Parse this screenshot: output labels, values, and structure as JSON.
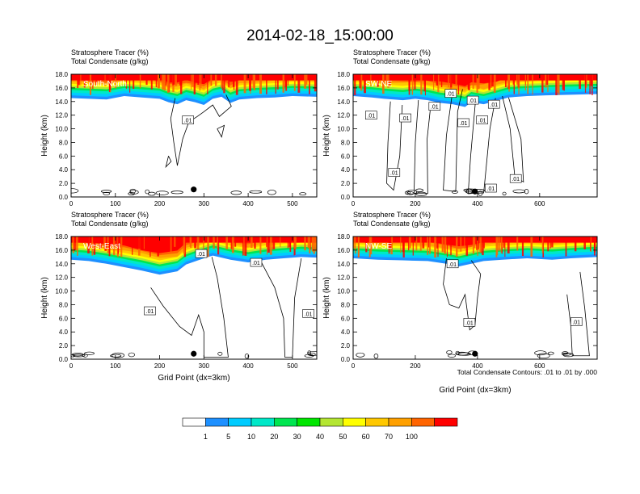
{
  "title": "2014-02-18_15:00:00",
  "chart_data": {
    "type": "heatmap",
    "title": "2014-02-18_15:00:00",
    "colorbar": {
      "colors": [
        "#ffffff",
        "#1e90ff",
        "#00ccff",
        "#00e8c8",
        "#00e650",
        "#00e600",
        "#b4e632",
        "#ffff00",
        "#ffc800",
        "#ffa000",
        "#ff6400",
        "#ff0000"
      ],
      "labels": [
        "1",
        "5",
        "10",
        "20",
        "30",
        "40",
        "50",
        "60",
        "70",
        "100"
      ]
    },
    "panels": [
      {
        "label": "South-North",
        "field_title_1": "Stratosphere Tracer   (%)",
        "field_title_2": "Total Condensate   (g/kg)",
        "ylabel": "Height (km)",
        "xlabel": "",
        "xlim": [
          0,
          555
        ],
        "ylim": [
          0,
          18
        ],
        "xticks": [
          "0",
          "100",
          "200",
          "300",
          "400",
          "500"
        ],
        "xtick_values": [
          0,
          100,
          200,
          300,
          400,
          500
        ],
        "yticks": [
          "0.0",
          "2.0",
          "4.0",
          "6.0",
          "8.0",
          "10.0",
          "12.0",
          "14.0",
          "16.0",
          "18.0"
        ],
        "marker_x": 277,
        "marker_y": 1.1,
        "contour_labels": [
          {
            "x": 264,
            "y": 11.3,
            "text": ".01"
          }
        ],
        "cloud_top_profile": [
          [
            0,
            14.5
          ],
          [
            40,
            14.4
          ],
          [
            80,
            14.3
          ],
          [
            120,
            14.8
          ],
          [
            160,
            14.6
          ],
          [
            200,
            14.4
          ],
          [
            220,
            13.9
          ],
          [
            240,
            13.6
          ],
          [
            260,
            14.2
          ],
          [
            280,
            13.9
          ],
          [
            300,
            13.5
          ],
          [
            320,
            14.4
          ],
          [
            340,
            14.7
          ],
          [
            360,
            13.8
          ],
          [
            380,
            14.3
          ],
          [
            420,
            14.5
          ],
          [
            460,
            14.6
          ],
          [
            500,
            14.8
          ],
          [
            555,
            14.7
          ]
        ],
        "condensate_contours": [
          [
            [
              235,
              14.5
            ],
            [
              225,
              11.5
            ],
            [
              232,
              8.0
            ],
            [
              240,
              4.6
            ],
            [
              252,
              8.5
            ],
            [
              266,
              11.0
            ],
            [
              285,
              11.8
            ],
            [
              300,
              12.5
            ],
            [
              320,
              13.5
            ],
            [
              335,
              11.8
            ],
            [
              362,
              13.3
            ],
            [
              350,
              15.0
            ]
          ],
          [
            [
              220,
              6.0
            ],
            [
              214,
              4.4
            ],
            [
              226,
              5.2
            ],
            [
              220,
              6.0
            ]
          ],
          [
            [
              330,
              10.0
            ],
            [
              340,
              8.8
            ],
            [
              346,
              10.5
            ],
            [
              330,
              10.0
            ]
          ]
        ]
      },
      {
        "label": "SW-NE",
        "field_title_1": "Stratosphere Tracer   (%)",
        "field_title_2": "Total Condensate   (g/kg)",
        "ylabel": "Height (km)",
        "xlabel": "",
        "xlim": [
          0,
          785
        ],
        "ylim": [
          0,
          18
        ],
        "xticks": [
          "0",
          "200",
          "400",
          "600"
        ],
        "xtick_values": [
          0,
          200,
          400,
          600
        ],
        "yticks": [
          "0.0",
          "2.0",
          "4.0",
          "6.0",
          "8.0",
          "10.0",
          "12.0",
          "14.0",
          "16.0",
          "18.0"
        ],
        "marker_x": 392,
        "marker_y": 0.8,
        "contour_labels": [
          {
            "x": 58,
            "y": 12.0,
            "text": ".01"
          },
          {
            "x": 168,
            "y": 11.6,
            "text": ".01"
          },
          {
            "x": 262,
            "y": 13.3,
            "text": ".01"
          },
          {
            "x": 314,
            "y": 15.2,
            "text": ".01"
          },
          {
            "x": 385,
            "y": 14.2,
            "text": ".01"
          },
          {
            "x": 355,
            "y": 10.9,
            "text": ".01"
          },
          {
            "x": 415,
            "y": 11.3,
            "text": ".01"
          },
          {
            "x": 453,
            "y": 13.6,
            "text": ".01"
          },
          {
            "x": 132,
            "y": 3.6,
            "text": ".01"
          },
          {
            "x": 443,
            "y": 1.3,
            "text": ".01"
          },
          {
            "x": 523,
            "y": 2.7,
            "text": ".01"
          }
        ],
        "cloud_top_profile": [
          [
            0,
            14.8
          ],
          [
            60,
            14.6
          ],
          [
            100,
            14.4
          ],
          [
            160,
            14.2
          ],
          [
            200,
            14.4
          ],
          [
            240,
            14.2
          ],
          [
            280,
            13.8
          ],
          [
            320,
            13.6
          ],
          [
            360,
            13.2
          ],
          [
            380,
            13.9
          ],
          [
            420,
            13.6
          ],
          [
            460,
            14.1
          ],
          [
            500,
            14.6
          ],
          [
            560,
            14.8
          ],
          [
            620,
            14.9
          ],
          [
            700,
            15.0
          ],
          [
            785,
            15.1
          ]
        ],
        "condensate_contours": [
          [
            [
              120,
              14.0
            ],
            [
              112,
              8.0
            ],
            [
              108,
              2.0
            ],
            [
              130,
              1.0
            ],
            [
              150,
              6.0
            ],
            [
              158,
              13.5
            ]
          ],
          [
            [
              210,
              14.2
            ],
            [
              200,
              8.0
            ],
            [
              196,
              0.5
            ],
            [
              240,
              0.5
            ],
            [
              238,
              8.5
            ],
            [
              250,
              13.6
            ]
          ],
          [
            [
              320,
              15.5
            ],
            [
              300,
              9.0
            ],
            [
              290,
              1.0
            ],
            [
              330,
              0.8
            ],
            [
              336,
              12.5
            ],
            [
              352,
              15.8
            ]
          ],
          [
            [
              395,
              14.8
            ],
            [
              378,
              6.0
            ],
            [
              370,
              0.5
            ],
            [
              420,
              0.6
            ],
            [
              440,
              10.0
            ],
            [
              458,
              14.5
            ]
          ],
          [
            [
              480,
              14.8
            ],
            [
              505,
              10.0
            ],
            [
              520,
              3.0
            ],
            [
              548,
              2.2
            ],
            [
              540,
              8.5
            ],
            [
              500,
              14.6
            ]
          ]
        ]
      },
      {
        "label": "West-East",
        "field_title_1": "Stratosphere Tracer   (%)",
        "field_title_2": "Total Condensate   (g/kg)",
        "ylabel": "Height (km)",
        "xlabel": "Grid Point (dx=3km)",
        "xlim": [
          0,
          555
        ],
        "ylim": [
          0,
          18
        ],
        "xticks": [
          "0",
          "100",
          "200",
          "300",
          "400",
          "500"
        ],
        "xtick_values": [
          0,
          100,
          200,
          300,
          400,
          500
        ],
        "yticks": [
          "0.0",
          "2.0",
          "4.0",
          "6.0",
          "8.0",
          "10.0",
          "12.0",
          "14.0",
          "16.0",
          "18.0"
        ],
        "marker_x": 277,
        "marker_y": 0.8,
        "contour_labels": [
          {
            "x": 178,
            "y": 7.1,
            "text": ".01"
          },
          {
            "x": 294,
            "y": 15.5,
            "text": ".01"
          },
          {
            "x": 418,
            "y": 14.2,
            "text": ".01"
          },
          {
            "x": 536,
            "y": 6.7,
            "text": ".01"
          }
        ],
        "cloud_top_profile": [
          [
            0,
            14.6
          ],
          [
            40,
            14.4
          ],
          [
            80,
            14.0
          ],
          [
            120,
            13.5
          ],
          [
            160,
            13.0
          ],
          [
            200,
            12.4
          ],
          [
            240,
            12.9
          ],
          [
            260,
            13.9
          ],
          [
            300,
            14.8
          ],
          [
            320,
            15.2
          ],
          [
            360,
            14.6
          ],
          [
            400,
            14.2
          ],
          [
            440,
            14.6
          ],
          [
            480,
            14.8
          ],
          [
            520,
            15.0
          ],
          [
            555,
            14.9
          ]
        ],
        "condensate_contours": [
          [
            [
              180,
              10.5
            ],
            [
              208,
              7.8
            ],
            [
              245,
              4.8
            ],
            [
              272,
              3.5
            ],
            [
              288,
              6.5
            ],
            [
              300,
              4.0
            ],
            [
              300,
              0.3
            ],
            [
              355,
              0.3
            ],
            [
              345,
              6.0
            ],
            [
              330,
              12.0
            ],
            [
              318,
              15.0
            ]
          ],
          [
            [
              430,
              14.2
            ],
            [
              460,
              10.5
            ],
            [
              480,
              6.0
            ],
            [
              483,
              0.3
            ],
            [
              500,
              0.3
            ],
            [
              505,
              9.0
            ],
            [
              520,
              14.8
            ]
          ]
        ]
      },
      {
        "label": "NW-SE",
        "field_title_1": "Stratosphere Tracer   (%)",
        "field_title_2": "Total Condensate   (g/kg)",
        "ylabel": "Height (km)",
        "xlabel": "Grid Point (dx=3km)",
        "xlim": [
          0,
          785
        ],
        "ylim": [
          0,
          18
        ],
        "xticks": [
          "0",
          "200",
          "400",
          "600"
        ],
        "xtick_values": [
          0,
          200,
          400,
          600
        ],
        "yticks": [
          "0.0",
          "2.0",
          "4.0",
          "6.0",
          "8.0",
          "10.0",
          "12.0",
          "14.0",
          "16.0",
          "18.0"
        ],
        "marker_x": 392,
        "marker_y": 0.8,
        "contour_labels": [
          {
            "x": 320,
            "y": 14.0,
            "text": ".01"
          },
          {
            "x": 374,
            "y": 5.4,
            "text": ".01"
          },
          {
            "x": 718,
            "y": 5.5,
            "text": ".01"
          }
        ],
        "cloud_top_profile": [
          [
            0,
            14.8
          ],
          [
            80,
            14.6
          ],
          [
            160,
            14.5
          ],
          [
            240,
            14.4
          ],
          [
            300,
            14.0
          ],
          [
            340,
            13.6
          ],
          [
            380,
            14.0
          ],
          [
            420,
            14.4
          ],
          [
            480,
            14.6
          ],
          [
            560,
            14.8
          ],
          [
            640,
            14.6
          ],
          [
            700,
            14.8
          ],
          [
            785,
            15.0
          ]
        ],
        "condensate_contours": [
          [
            [
              300,
              14.8
            ],
            [
              290,
              11.0
            ],
            [
              310,
              8.0
            ],
            [
              340,
              7.5
            ],
            [
              360,
              9.5
            ],
            [
              375,
              4.3
            ],
            [
              392,
              5.0
            ],
            [
              400,
              9.0
            ],
            [
              410,
              12.5
            ],
            [
              380,
              14.5
            ]
          ],
          [
            [
              688,
              9.5
            ],
            [
              700,
              5.0
            ],
            [
              705,
              0.5
            ],
            [
              760,
              0.5
            ],
            [
              745,
              7.5
            ],
            [
              730,
              12.8
            ]
          ]
        ]
      }
    ]
  },
  "footer_note": "Total Condensate Contours: .01 to .01 by .000"
}
